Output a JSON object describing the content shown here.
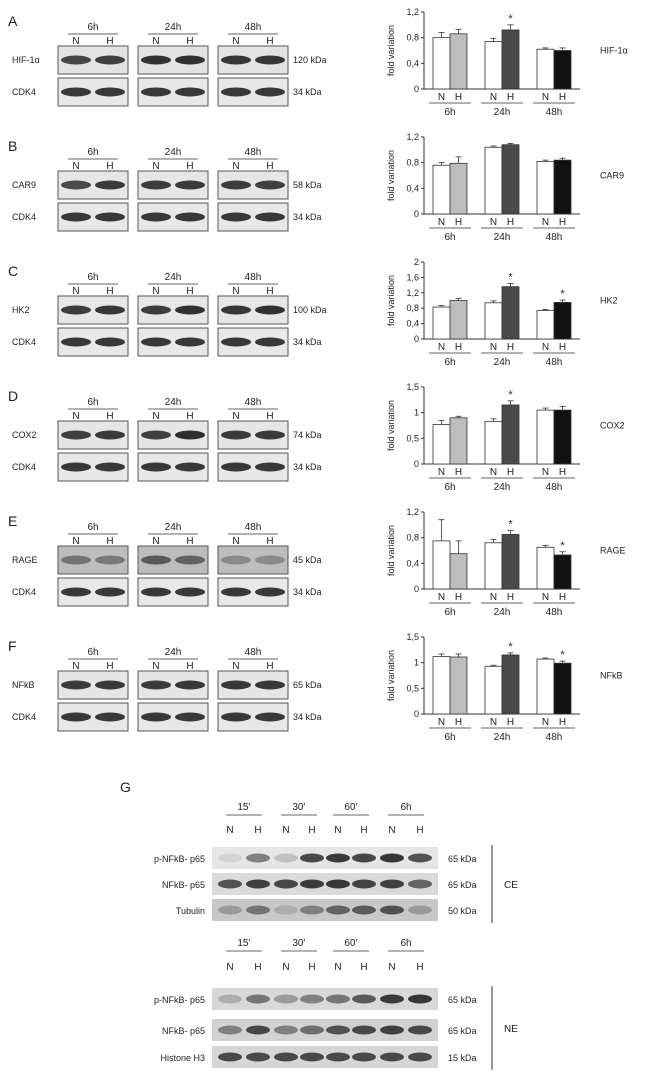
{
  "panels": [
    {
      "letter": "A",
      "label": "HIF-1α",
      "band_kda": "120 kDa",
      "ctrl": "CDK4",
      "ctrl_kda": "34 kDa",
      "times": [
        "6h",
        "24h",
        "48h"
      ],
      "lanes": [
        "N",
        "H"
      ]
    },
    {
      "letter": "B",
      "label": "CAR9",
      "band_kda": "58 kDa",
      "ctrl": "CDK4",
      "ctrl_kda": "34 kDa",
      "times": [
        "6h",
        "24h",
        "48h"
      ],
      "lanes": [
        "N",
        "H"
      ]
    },
    {
      "letter": "C",
      "label": "HK2",
      "band_kda": "100 kDa",
      "ctrl": "CDK4",
      "ctrl_kda": "34 kDa",
      "times": [
        "6h",
        "24h",
        "48h"
      ],
      "lanes": [
        "N",
        "H"
      ]
    },
    {
      "letter": "D",
      "label": "COX2",
      "band_kda": "74 kDa",
      "ctrl": "CDK4",
      "ctrl_kda": "34 kDa",
      "times": [
        "6h",
        "24h",
        "48h"
      ],
      "lanes": [
        "N",
        "H"
      ]
    },
    {
      "letter": "E",
      "label": "RAGE",
      "band_kda": "45 kDa",
      "ctrl": "CDK4",
      "ctrl_kda": "34 kDa",
      "times": [
        "6h",
        "24h",
        "48h"
      ],
      "lanes": [
        "N",
        "H"
      ]
    },
    {
      "letter": "F",
      "label": "NFkB",
      "band_kda": "65 kDa",
      "ctrl": "CDK4",
      "ctrl_kda": "34 kDa",
      "times": [
        "6h",
        "24h",
        "48h"
      ],
      "lanes": [
        "N",
        "H"
      ]
    }
  ],
  "panel_g": {
    "letter": "G",
    "times": [
      "15’",
      "30’",
      "60’",
      "6h"
    ],
    "lanes": [
      "N",
      "H"
    ],
    "blots": [
      {
        "fraction": "CE",
        "rows": [
          {
            "label": "p-NFkB- p65",
            "kda": "65 kDa"
          },
          {
            "label": "NFkB- p65",
            "kda": "65 kDa"
          },
          {
            "label": "Tubulin",
            "kda": "50 kDa"
          }
        ]
      },
      {
        "fraction": "NE",
        "rows": [
          {
            "label": "p-NFkB- p65",
            "kda": "65 kDa"
          },
          {
            "label": "NFkB- p65",
            "kda": "65 kDa"
          },
          {
            "label": "Histone H3",
            "kda": "15 kDa"
          }
        ]
      }
    ]
  },
  "chart_data": [
    {
      "type": "bar",
      "title": "HIF-1α",
      "ylabel": "fold variation",
      "ylim": [
        0,
        1.2
      ],
      "yticks": [
        "0",
        "0,4",
        "0,8",
        "1,2"
      ],
      "ytick_values": [
        0,
        0.4,
        0.8,
        1.2
      ],
      "categories": [
        "6h",
        "24h",
        "48h"
      ],
      "lanes": [
        "N",
        "H"
      ],
      "series": [
        {
          "name": "N",
          "values": [
            0.8,
            0.74,
            0.62
          ],
          "errors": [
            0.08,
            0.05,
            0.02
          ]
        },
        {
          "name": "H",
          "values": [
            0.86,
            0.92,
            0.6
          ],
          "errors": [
            0.07,
            0.08,
            0.04
          ]
        }
      ],
      "significant": [
        {
          "category": "24h",
          "lane": "H",
          "mark": "*"
        }
      ]
    },
    {
      "type": "bar",
      "title": "CAR9",
      "ylabel": "fold variation",
      "ylim": [
        0,
        1.2
      ],
      "yticks": [
        "0",
        "0,4",
        "0,8",
        "1,2"
      ],
      "ytick_values": [
        0,
        0.4,
        0.8,
        1.2
      ],
      "categories": [
        "6h",
        "24h",
        "48h"
      ],
      "lanes": [
        "N",
        "H"
      ],
      "series": [
        {
          "name": "N",
          "values": [
            0.76,
            1.04,
            0.82
          ],
          "errors": [
            0.04,
            0.02,
            0.02
          ]
        },
        {
          "name": "H",
          "values": [
            0.79,
            1.08,
            0.84
          ],
          "errors": [
            0.1,
            0.02,
            0.03
          ]
        }
      ],
      "significant": []
    },
    {
      "type": "bar",
      "title": "HK2",
      "ylabel": "fold variation",
      "ylim": [
        0,
        2
      ],
      "yticks": [
        "0",
        "0,4",
        "0,8",
        "1,2",
        "1,6",
        "2"
      ],
      "ytick_values": [
        0,
        0.4,
        0.8,
        1.2,
        1.6,
        2
      ],
      "categories": [
        "6h",
        "24h",
        "48h"
      ],
      "lanes": [
        "N",
        "H"
      ],
      "series": [
        {
          "name": "N",
          "values": [
            0.83,
            0.94,
            0.74
          ],
          "errors": [
            0.04,
            0.05,
            0.03
          ]
        },
        {
          "name": "H",
          "values": [
            1.0,
            1.36,
            0.95
          ],
          "errors": [
            0.05,
            0.08,
            0.06
          ]
        }
      ],
      "significant": [
        {
          "category": "24h",
          "lane": "H",
          "mark": "*"
        },
        {
          "category": "48h",
          "lane": "H",
          "mark": "*"
        }
      ]
    },
    {
      "type": "bar",
      "title": "COX2",
      "ylabel": "fold variation",
      "ylim": [
        0,
        1.5
      ],
      "yticks": [
        "0",
        "0,5",
        "1",
        "1,5"
      ],
      "ytick_values": [
        0,
        0.5,
        1,
        1.5
      ],
      "categories": [
        "6h",
        "24h",
        "48h"
      ],
      "lanes": [
        "N",
        "H"
      ],
      "series": [
        {
          "name": "N",
          "values": [
            0.77,
            0.83,
            1.05
          ],
          "errors": [
            0.08,
            0.05,
            0.04
          ]
        },
        {
          "name": "H",
          "values": [
            0.9,
            1.15,
            1.05
          ],
          "errors": [
            0.03,
            0.08,
            0.07
          ]
        }
      ],
      "significant": [
        {
          "category": "24h",
          "lane": "H",
          "mark": "*"
        }
      ]
    },
    {
      "type": "bar",
      "title": "RAGE",
      "ylabel": "fold variation",
      "ylim": [
        0,
        1.2
      ],
      "yticks": [
        "0",
        "0,4",
        "0,8",
        "1,2"
      ],
      "ytick_values": [
        0,
        0.4,
        0.8,
        1.2
      ],
      "categories": [
        "6h",
        "24h",
        "48h"
      ],
      "lanes": [
        "N",
        "H"
      ],
      "series": [
        {
          "name": "N",
          "values": [
            0.75,
            0.72,
            0.65
          ],
          "errors": [
            0.33,
            0.05,
            0.03
          ]
        },
        {
          "name": "H",
          "values": [
            0.55,
            0.85,
            0.53
          ],
          "errors": [
            0.2,
            0.06,
            0.05
          ]
        }
      ],
      "significant": [
        {
          "category": "24h",
          "lane": "H",
          "mark": "*"
        },
        {
          "category": "48h",
          "lane": "H",
          "mark": "*"
        }
      ]
    },
    {
      "type": "bar",
      "title": "NFkB",
      "ylabel": "fold variation",
      "ylim": [
        0,
        1.5
      ],
      "yticks": [
        "0",
        "0,5",
        "1",
        "1,5"
      ],
      "ytick_values": [
        0,
        0.5,
        1,
        1.5
      ],
      "categories": [
        "6h",
        "24h",
        "48h"
      ],
      "lanes": [
        "N",
        "H"
      ],
      "series": [
        {
          "name": "N",
          "values": [
            1.12,
            0.93,
            1.07
          ],
          "errors": [
            0.05,
            0.02,
            0.02
          ]
        },
        {
          "name": "H",
          "values": [
            1.11,
            1.15,
            0.99
          ],
          "errors": [
            0.06,
            0.04,
            0.04
          ]
        }
      ],
      "significant": [
        {
          "category": "24h",
          "lane": "H",
          "mark": "*"
        },
        {
          "category": "48h",
          "lane": "H",
          "mark": "*"
        }
      ]
    }
  ]
}
